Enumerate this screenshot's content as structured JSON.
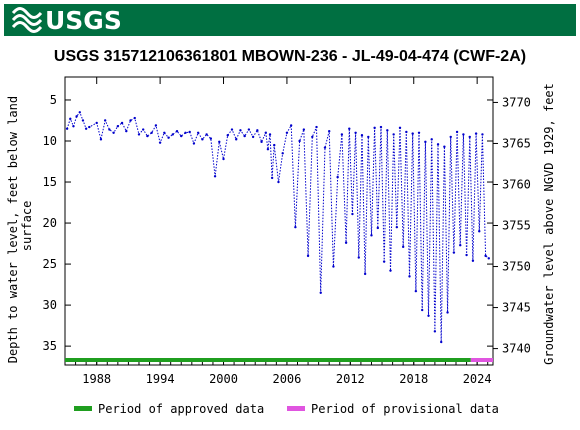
{
  "header": {
    "logo_text": "USGS",
    "colors": {
      "bar": "#006f41",
      "logo_text": "#ffffff"
    }
  },
  "chart_data": {
    "type": "scatter",
    "title": "USGS 315712106361801 MBOWN-236 - JL-49-04-474 (CWF-2A)",
    "xlabel": "",
    "ylabel": "Depth to water level, feet below land surface",
    "y2label": "Groundwater level above NGVD 1929, feet",
    "x_ticks": [
      "1988",
      "1994",
      "2000",
      "2006",
      "2012",
      "2018",
      "2024"
    ],
    "y_ticks": [
      "5",
      "10",
      "15",
      "20",
      "25",
      "30",
      "35"
    ],
    "y2_ticks": [
      "3770",
      "3765",
      "3760",
      "3755",
      "3750",
      "3745",
      "3740"
    ],
    "xlim": [
      1985.0,
      2025.5
    ],
    "ylim": [
      37.3,
      2.2
    ],
    "y2_offset": 3775.3,
    "grid": false,
    "series": [
      {
        "name": "",
        "color": "#0000cc",
        "style": "dotted-line-with-markers",
        "x": [
          1985.2,
          1985.5,
          1985.8,
          1986.1,
          1986.4,
          1986.7,
          1987.0,
          1987.3,
          1988.0,
          1988.4,
          1988.8,
          1989.2,
          1989.6,
          1990.0,
          1990.4,
          1990.8,
          1991.2,
          1991.6,
          1992.0,
          1992.4,
          1992.8,
          1993.2,
          1993.6,
          1994.0,
          1994.4,
          1994.8,
          1995.2,
          1995.6,
          1996.0,
          1996.4,
          1996.8,
          1997.2,
          1997.6,
          1998.0,
          1998.4,
          1998.8,
          1999.2,
          1999.6,
          2000.0,
          2000.4,
          2000.8,
          2001.2,
          2001.6,
          2002.0,
          2002.4,
          2002.8,
          2003.2,
          2003.6,
          2004.0,
          2004.2,
          2004.4,
          2004.6,
          2004.8,
          2005.2,
          2005.6,
          2006.0,
          2006.4,
          2006.8,
          2007.2,
          2007.6,
          2008.0,
          2008.4,
          2008.8,
          2009.2,
          2009.6,
          2010.0,
          2010.4,
          2010.8,
          2011.2,
          2011.6,
          2011.9,
          2012.2,
          2012.5,
          2012.8,
          2013.1,
          2013.4,
          2013.7,
          2014.0,
          2014.3,
          2014.6,
          2014.9,
          2015.2,
          2015.5,
          2015.8,
          2016.1,
          2016.4,
          2016.7,
          2017.0,
          2017.3,
          2017.6,
          2017.9,
          2018.2,
          2018.5,
          2018.8,
          2019.1,
          2019.4,
          2019.7,
          2020.0,
          2020.3,
          2020.6,
          2020.9,
          2021.2,
          2021.5,
          2021.8,
          2022.1,
          2022.4,
          2022.7,
          2023.0,
          2023.3,
          2023.6,
          2023.9,
          2024.2,
          2024.5,
          2024.8,
          2025.1
        ],
        "y": [
          8.5,
          7.3,
          8.2,
          7.0,
          6.5,
          7.5,
          8.5,
          8.3,
          7.8,
          9.8,
          7.5,
          8.6,
          9.0,
          8.2,
          7.8,
          8.8,
          7.5,
          7.2,
          9.2,
          8.6,
          9.4,
          9.0,
          8.1,
          10.2,
          9.0,
          9.6,
          9.2,
          8.8,
          9.4,
          9.0,
          8.9,
          10.3,
          9.0,
          9.8,
          9.2,
          9.7,
          14.3,
          10.1,
          12.2,
          9.3,
          8.6,
          9.8,
          8.7,
          9.4,
          8.6,
          9.5,
          8.7,
          10.1,
          9.0,
          11.0,
          9.2,
          14.5,
          10.5,
          15.0,
          11.5,
          9.0,
          8.1,
          20.5,
          10.0,
          8.6,
          24.0,
          9.5,
          8.3,
          28.5,
          10.8,
          8.8,
          25.3,
          14.4,
          9.2,
          22.4,
          8.5,
          18.9,
          9.0,
          24.2,
          9.3,
          26.2,
          9.5,
          21.5,
          8.4,
          20.6,
          8.3,
          24.7,
          8.7,
          25.8,
          9.2,
          20.5,
          8.4,
          22.9,
          8.9,
          26.5,
          9.1,
          28.3,
          9.0,
          30.6,
          10.1,
          31.3,
          9.8,
          33.2,
          10.4,
          34.5,
          10.7,
          30.9,
          9.5,
          23.6,
          8.9,
          22.7,
          9.2,
          23.9,
          9.5,
          24.6,
          9.1,
          21.0,
          9.2,
          24.0,
          24.3
        ]
      }
    ],
    "legend": [
      {
        "label": "Period of approved data",
        "color": "#1f9e1f"
      },
      {
        "label": "Period of provisional data",
        "color": "#e055e0"
      }
    ],
    "legend_placement": "bottom",
    "approved_period": [
      1985.0,
      2023.4
    ],
    "provisional_period": [
      2023.4,
      2025.5
    ]
  }
}
